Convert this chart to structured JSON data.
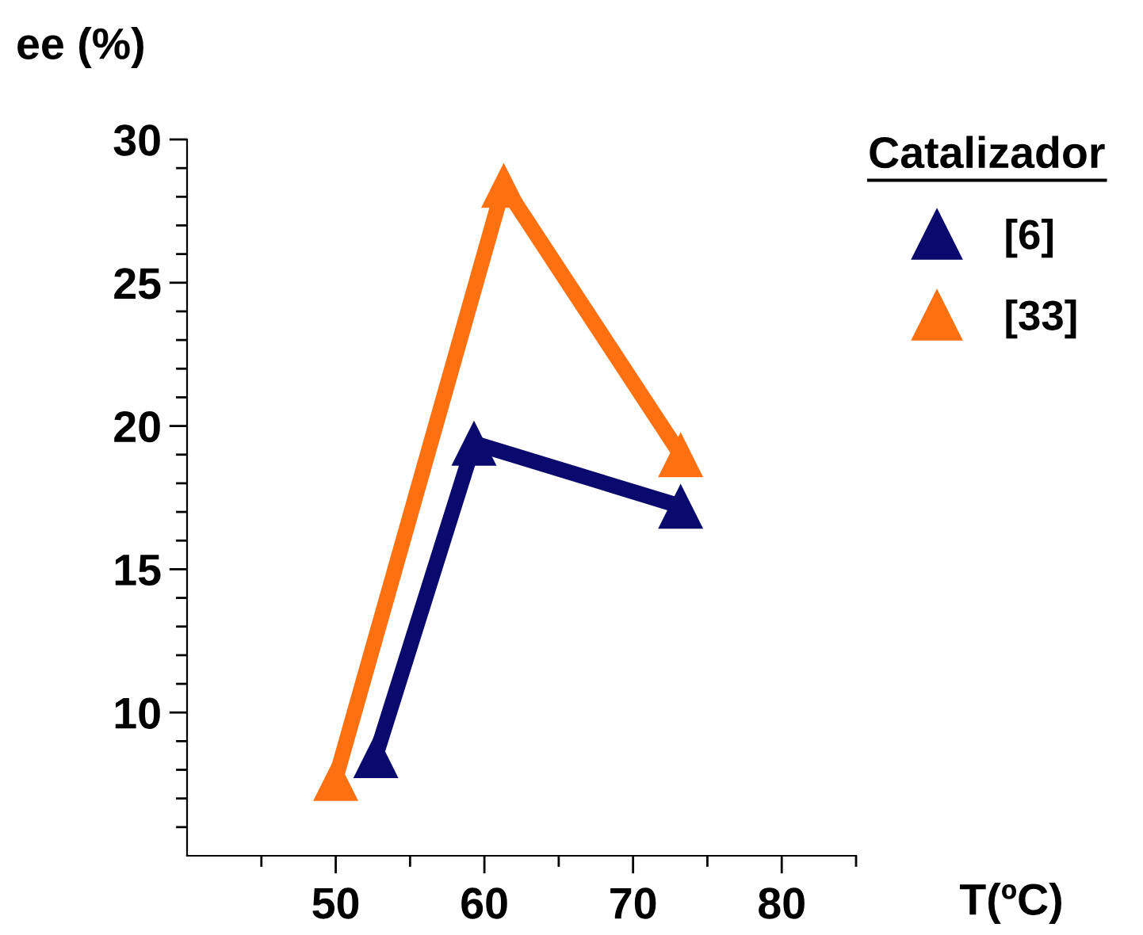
{
  "chart_data": {
    "type": "line",
    "xlabel": "T(ºC)",
    "ylabel": "ee (%)",
    "legend_title": "Catalizador",
    "legend": "top right",
    "marker": "triangle",
    "line_style": "solid",
    "grid": false,
    "xlim": [
      40,
      85
    ],
    "xticks": [
      {
        "value": 45,
        "label": null
      },
      50,
      {
        "value": 55,
        "label": null
      },
      60,
      {
        "value": 65,
        "label": null
      },
      70,
      {
        "value": 75,
        "label": null
      },
      80,
      {
        "value": 85,
        "label": null
      }
    ],
    "ylim": [
      5,
      30
    ],
    "yticks": [
      {
        "value": 6,
        "label": null
      },
      {
        "value": 7,
        "label": null
      },
      {
        "value": 8,
        "label": null
      },
      {
        "value": 9,
        "label": null
      },
      10,
      {
        "value": 11,
        "label": null
      },
      {
        "value": 12,
        "label": null
      },
      {
        "value": 13,
        "label": null
      },
      {
        "value": 14,
        "label": null
      },
      15,
      {
        "value": 16,
        "label": null
      },
      {
        "value": 17,
        "label": null
      },
      {
        "value": 18,
        "label": null
      },
      {
        "value": 19,
        "label": null
      },
      20,
      {
        "value": 21,
        "label": null
      },
      {
        "value": 22,
        "label": null
      },
      {
        "value": 23,
        "label": null
      },
      {
        "value": 24,
        "label": null
      },
      25,
      {
        "value": 26,
        "label": null
      },
      {
        "value": 27,
        "label": null
      },
      {
        "value": 28,
        "label": null
      },
      {
        "value": 29,
        "label": null
      },
      30
    ],
    "series": [
      {
        "name": "[6]",
        "color": "#0a0a6e",
        "x": [
          52.7,
          59.3,
          73.2
        ],
        "values": [
          8.5,
          19.4,
          17.2
        ]
      },
      {
        "name": "[33]",
        "color": "#ff7010",
        "x": [
          50.0,
          61.3,
          73.2
        ],
        "values": [
          7.7,
          28.4,
          19.0
        ]
      }
    ]
  }
}
